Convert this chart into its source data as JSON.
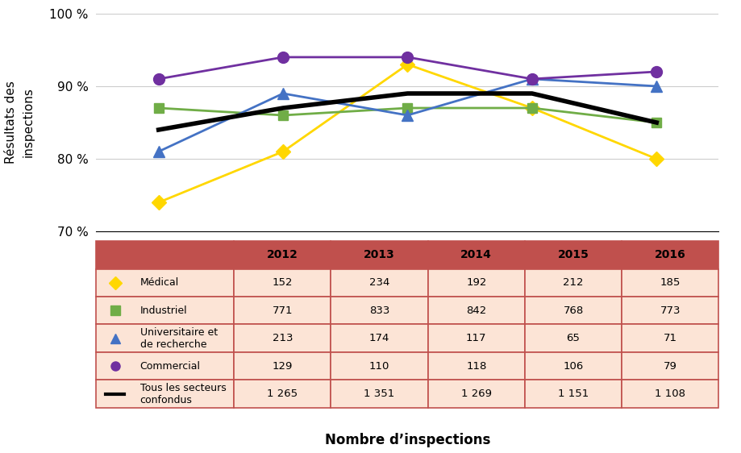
{
  "years": [
    2012,
    2013,
    2014,
    2015,
    2016
  ],
  "series": {
    "Medical": {
      "values": [
        74,
        81,
        93,
        87,
        80
      ],
      "color": "#FFD700",
      "marker": "D",
      "label": "Médical",
      "linewidth": 2,
      "markersize": 9
    },
    "Industriel": {
      "values": [
        87,
        86,
        87,
        87,
        85
      ],
      "color": "#70AD47",
      "marker": "s",
      "label": "Industriel",
      "linewidth": 2,
      "markersize": 9
    },
    "Universitaire": {
      "values": [
        81,
        89,
        86,
        91,
        90
      ],
      "color": "#4472C4",
      "marker": "^",
      "label": "Universitaire et\nde recherche",
      "linewidth": 2,
      "markersize": 10
    },
    "Commercial": {
      "values": [
        91,
        94,
        94,
        91,
        92
      ],
      "color": "#7030A0",
      "marker": "o",
      "label": "Commercial",
      "linewidth": 2,
      "markersize": 10
    },
    "Tous": {
      "values": [
        84,
        87,
        89,
        89,
        85
      ],
      "color": "#000000",
      "marker": null,
      "label": "Tous les secteurs\nconfondus",
      "linewidth": 4,
      "markersize": 0
    }
  },
  "ylim": [
    70,
    100
  ],
  "yticks": [
    70,
    80,
    90,
    100
  ],
  "ytick_labels": [
    "70 %",
    "80 %",
    "90 %",
    "100 %"
  ],
  "ylabel": "Résultats des\ninspections",
  "xlabel": "Nombre d’inspections",
  "table_data": {
    "header": [
      "",
      "2012",
      "2013",
      "2014",
      "2015",
      "2016"
    ],
    "rows": [
      [
        "Médical",
        "152",
        "234",
        "192",
        "212",
        "185"
      ],
      [
        "Industriel",
        "771",
        "833",
        "842",
        "768",
        "773"
      ],
      [
        "Universitaire et\nde recherche",
        "213",
        "174",
        "117",
        "65",
        "71"
      ],
      [
        "Commercial",
        "129",
        "110",
        "118",
        "106",
        "79"
      ],
      [
        "Tous les secteurs\nconfondus",
        "1 265",
        "1 351",
        "1 269",
        "1 151",
        "1 108"
      ]
    ]
  },
  "table_header_color": "#C0504D",
  "table_row_color": "#FCE4D6",
  "background_color": "#FFFFFF",
  "grid_color": "#CCCCCC"
}
